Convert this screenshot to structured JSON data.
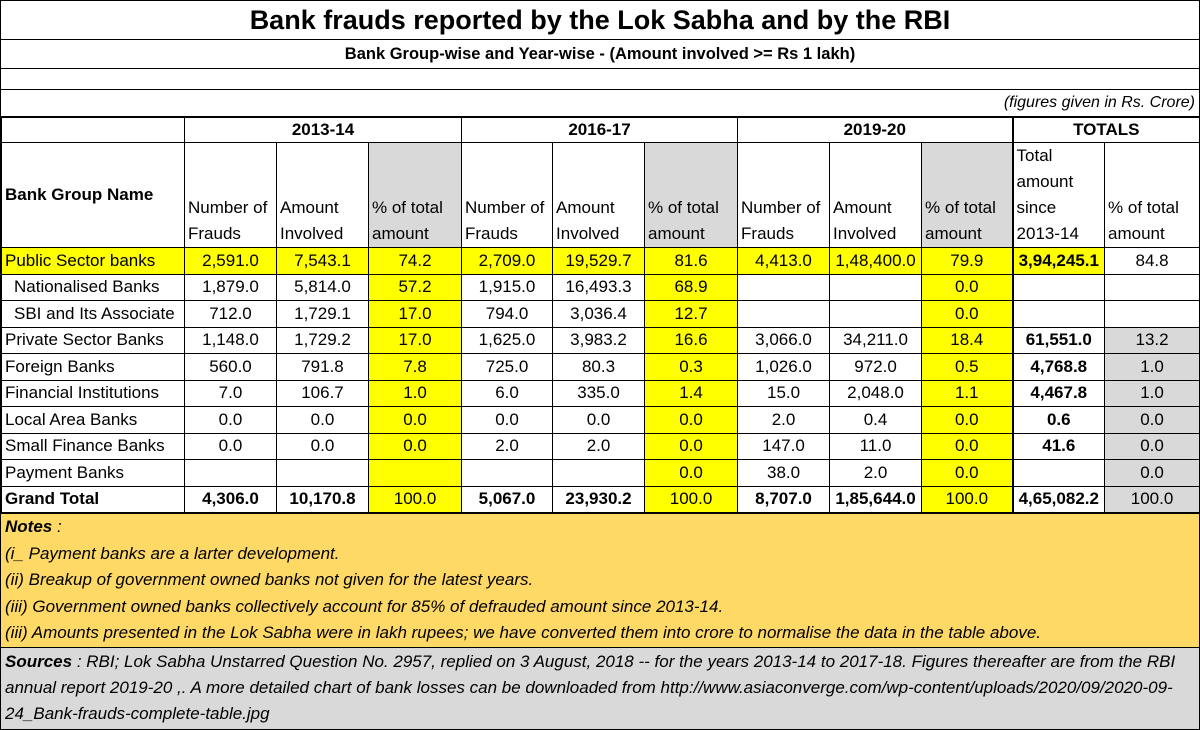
{
  "chart_data": {
    "type": "table",
    "title": "Bank frauds reported by the Lok Sabha and by the RBI",
    "subtitle": "Bank Group-wise and Year-wise - (Amount involved >= Rs 1 lakh)",
    "units_note": "(figures given in Rs. Crore)",
    "column_groups": [
      "2013-14",
      "2016-17",
      "2019-20",
      "TOTALS"
    ],
    "columns": {
      "bank_group_name": "Bank Group Name",
      "number_of_frauds": "Number of Frauds",
      "amount_involved": "Amount Involved",
      "pct_total": "% of total amount",
      "total_since": "Total amount since 2013-14"
    },
    "rows": [
      {
        "name": "Public Sector banks",
        "cells": [
          "2,591.0",
          "7,543.1",
          "74.2",
          "2,709.0",
          "19,529.7",
          "81.6",
          "4,413.0",
          "1,48,400.0",
          "79.9",
          "3,94,245.1",
          "84.8"
        ]
      },
      {
        "name": "Nationalised Banks",
        "cells": [
          "1,879.0",
          "5,814.0",
          "57.2",
          "1,915.0",
          "16,493.3",
          "68.9",
          "",
          "",
          "0.0",
          "",
          ""
        ]
      },
      {
        "name": "SBI and Its Associate",
        "cells": [
          "712.0",
          "1,729.1",
          "17.0",
          "794.0",
          "3,036.4",
          "12.7",
          "",
          "",
          "0.0",
          "",
          ""
        ]
      },
      {
        "name": "Private Sector Banks",
        "cells": [
          "1,148.0",
          "1,729.2",
          "17.0",
          "1,625.0",
          "3,983.2",
          "16.6",
          "3,066.0",
          "34,211.0",
          "18.4",
          "61,551.0",
          "13.2"
        ]
      },
      {
        "name": "Foreign Banks",
        "cells": [
          "560.0",
          "791.8",
          "7.8",
          "725.0",
          "80.3",
          "0.3",
          "1,026.0",
          "972.0",
          "0.5",
          "4,768.8",
          "1.0"
        ]
      },
      {
        "name": "Financial Institutions",
        "cells": [
          "7.0",
          "106.7",
          "1.0",
          "6.0",
          "335.0",
          "1.4",
          "15.0",
          "2,048.0",
          "1.1",
          "4,467.8",
          "1.0"
        ]
      },
      {
        "name": "Local Area Banks",
        "cells": [
          "0.0",
          "0.0",
          "0.0",
          "0.0",
          "0.0",
          "0.0",
          "2.0",
          "0.4",
          "0.0",
          "0.6",
          "0.0"
        ]
      },
      {
        "name": "Small Finance Banks",
        "cells": [
          "0.0",
          "0.0",
          "0.0",
          "2.0",
          "2.0",
          "0.0",
          "147.0",
          "11.0",
          "0.0",
          "41.6",
          "0.0"
        ]
      },
      {
        "name": "Payment Banks",
        "cells": [
          "",
          "",
          "",
          "",
          "",
          "0.0",
          "38.0",
          "2.0",
          "0.0",
          "",
          "0.0"
        ]
      },
      {
        "name": "Grand Total",
        "cells": [
          "4,306.0",
          "10,170.8",
          "100.0",
          "5,067.0",
          "23,930.2",
          "100.0",
          "8,707.0",
          "1,85,644.0",
          "100.0",
          "4,65,082.2",
          "100.0"
        ]
      }
    ]
  },
  "notes": {
    "heading": "Notes",
    "heading_suffix": " :",
    "items": [
      "(i_ Payment banks are a larter development.",
      "(ii) Breakup of government owned banks not given for the latest years.",
      "(iii) Government owned banks collectively account for 85% of defrauded amount since 2013-14.",
      "(iii) Amounts presented in the Lok Sabha were in lakh rupees; we have converted them into crore to normalise the data in the table above."
    ]
  },
  "sources": {
    "label": "Sources",
    "text": " : RBI; Lok Sabha Unstarred Question No. 2957, replied on 3 August, 2018  -- for the years  2013-14 to 2017-18.  Figures thereafter are from the RBI annual report 2019-20       ,. A more detailed chart of bank losses can be downloaded from  http://www.asiaconverge.com/wp-content/uploads/2020/09/2020-09-24_Bank-frauds-complete-table.jpg"
  },
  "colors": {
    "highlight_yellow": "#ffff00",
    "header_gray": "#d9d9d9",
    "notes_background": "#ffd966",
    "sources_background": "#d9d9d9"
  }
}
